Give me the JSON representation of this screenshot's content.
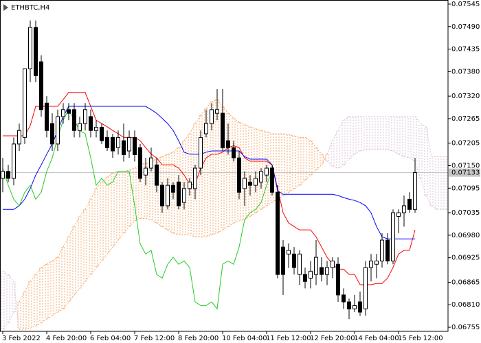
{
  "chart_data": {
    "type": "candlestick",
    "title": "ETHBTC,H4",
    "categories": [
      "3 Feb 2022",
      null,
      null,
      null,
      null,
      null,
      null,
      null,
      "4 Feb 20:00",
      null,
      null,
      null,
      null,
      null,
      null,
      null,
      "6 Feb 04:00",
      null,
      null,
      null,
      null,
      null,
      null,
      null,
      "7 Feb 12:00",
      null,
      null,
      null,
      null,
      null,
      null,
      null,
      "8 Feb 20:00",
      null,
      null,
      null,
      null,
      null,
      null,
      null,
      "10 Feb 04:00",
      null,
      null,
      null,
      null,
      null,
      null,
      null,
      "11 Feb 12:00",
      null,
      null,
      null,
      null,
      null,
      null,
      null,
      "12 Feb 20:00",
      null,
      null,
      null,
      null,
      null,
      null,
      null,
      "14 Feb 04:00",
      null,
      null,
      null,
      null,
      null,
      null,
      null,
      "15 Feb 12:00",
      null,
      null,
      null,
      null,
      null,
      null,
      null,
      null,
      null
    ],
    "open": [
      0.07119,
      0.07136,
      0.07119,
      0.07203,
      0.07219,
      0.07387,
      0.07488,
      0.07404,
      0.07303,
      0.07253,
      0.07203,
      0.0727,
      0.07287,
      0.07287,
      0.07236,
      0.07253,
      0.0727,
      0.07236,
      0.07244,
      0.07219,
      0.07219,
      0.07194,
      0.07211,
      0.07186,
      0.07219,
      0.07194,
      0.07127,
      0.07144,
      0.07152,
      0.07102,
      0.07052,
      0.07102,
      0.0711,
      0.0706,
      0.07094,
      0.07094,
      0.07144,
      0.07228,
      0.07253,
      0.07278,
      0.07278,
      0.07211,
      0.07194,
      0.07169,
      0.07094,
      0.0711,
      0.07102,
      0.0711,
      0.07127,
      0.07144,
      0.07085,
      0.06951,
      0.06934,
      0.06934,
      0.06884,
      0.06884,
      0.06875,
      0.06884,
      0.06901,
      0.06884,
      0.06901,
      0.06909,
      0.06834,
      0.06817,
      0.068,
      0.06817,
      0.068,
      0.06901,
      0.06909,
      0.06917,
      0.06968,
      0.06917,
      0.07026,
      0.07035,
      0.07068,
      0.07043,
      null,
      null,
      null,
      null,
      null,
      null
    ],
    "high": [
      0.07169,
      0.07152,
      0.07219,
      0.07253,
      0.07387,
      0.07505,
      0.07505,
      0.0742,
      0.0732,
      0.07278,
      0.07287,
      0.07303,
      0.07303,
      0.07303,
      0.0727,
      0.07303,
      0.07287,
      0.07261,
      0.07253,
      0.07236,
      0.07228,
      0.07236,
      0.07253,
      0.07236,
      0.07236,
      0.07203,
      0.07169,
      0.07194,
      0.07169,
      0.0711,
      0.07119,
      0.0711,
      0.07127,
      0.0711,
      0.07119,
      0.07152,
      0.07236,
      0.07287,
      0.07303,
      0.07337,
      0.07337,
      0.07253,
      0.07211,
      0.07186,
      0.07136,
      0.07127,
      0.07136,
      0.07144,
      0.07152,
      0.07152,
      0.07102,
      0.06968,
      0.0696,
      0.06951,
      0.06943,
      0.06901,
      0.06917,
      0.06968,
      0.06926,
      0.06917,
      0.06926,
      0.06926,
      0.0685,
      0.06825,
      0.06834,
      0.06842,
      0.06917,
      0.06934,
      0.06934,
      0.06985,
      0.06985,
      0.07043,
      0.07043,
      0.07077,
      0.07085,
      0.07169,
      null,
      null,
      null,
      null,
      null,
      null
    ],
    "low": [
      0.07085,
      0.0711,
      0.07102,
      0.07186,
      0.07203,
      0.07354,
      0.07354,
      0.0727,
      0.07219,
      0.07186,
      0.07186,
      0.07253,
      0.07261,
      0.07219,
      0.07219,
      0.07236,
      0.07219,
      0.07219,
      0.07203,
      0.07186,
      0.07169,
      0.07177,
      0.0716,
      0.07169,
      0.0716,
      0.0711,
      0.07102,
      0.07136,
      0.07085,
      0.07035,
      0.07043,
      0.07068,
      0.07043,
      0.07043,
      0.07077,
      0.07068,
      0.07127,
      0.07219,
      0.07236,
      0.07261,
      0.07186,
      0.07177,
      0.0716,
      0.07068,
      0.07052,
      0.07077,
      0.07085,
      0.07094,
      0.0711,
      0.07077,
      0.06875,
      0.06834,
      0.069,
      0.06884,
      0.06858,
      0.0685,
      0.0685,
      0.06858,
      0.06867,
      0.06858,
      0.06875,
      0.06817,
      0.068,
      0.06775,
      0.06792,
      0.06783,
      0.06783,
      0.06867,
      0.06875,
      0.06901,
      0.06909,
      0.06909,
      0.06985,
      0.07001,
      0.07035,
      0.07035,
      null,
      null,
      null,
      null,
      null,
      null
    ],
    "close": [
      0.07136,
      0.07119,
      0.07203,
      0.07236,
      0.07387,
      0.07488,
      0.0737,
      0.07287,
      0.07236,
      0.07203,
      0.0727,
      0.07287,
      0.07278,
      0.07236,
      0.07253,
      0.07287,
      0.07236,
      0.07244,
      0.07211,
      0.07194,
      0.07186,
      0.07219,
      0.07177,
      0.07219,
      0.07177,
      0.07119,
      0.07144,
      0.07169,
      0.07102,
      0.07052,
      0.07102,
      0.07085,
      0.07052,
      0.07094,
      0.0711,
      0.07144,
      0.07219,
      0.07253,
      0.07287,
      0.07287,
      0.07194,
      0.07194,
      0.07169,
      0.07085,
      0.07119,
      0.07102,
      0.07119,
      0.07136,
      0.07144,
      0.07085,
      0.06884,
      0.06884,
      0.06943,
      0.06901,
      0.06934,
      0.06867,
      0.06892,
      0.06926,
      0.06884,
      0.06901,
      0.06917,
      0.06834,
      0.06817,
      0.068,
      0.06808,
      0.06792,
      0.06901,
      0.06917,
      0.06917,
      0.06968,
      0.06917,
      0.07035,
      0.07035,
      0.07052,
      0.07043,
      0.07133,
      null,
      null,
      null,
      null,
      null,
      null
    ],
    "up_color": "#ffffff",
    "down_color": "#000000",
    "series": [
      {
        "color": "#ff0000",
        "values": [
          0.07223,
          0.07223,
          0.07223,
          0.07223,
          0.07223,
          0.07248,
          0.07295,
          0.07295,
          0.07295,
          0.07295,
          0.07295,
          0.07312,
          0.07329,
          0.07329,
          0.07329,
          0.07329,
          0.07295,
          0.07261,
          0.07253,
          0.07245,
          0.07236,
          0.07228,
          0.07219,
          0.07219,
          0.07219,
          0.07211,
          0.07194,
          0.07178,
          0.07169,
          0.07152,
          0.07152,
          0.07152,
          0.07144,
          0.07127,
          0.07105,
          0.07105,
          0.07144,
          0.07169,
          0.07178,
          0.07178,
          0.07183,
          0.07194,
          0.07199,
          0.07194,
          0.07169,
          0.07161,
          0.07161,
          0.07161,
          0.07161,
          0.07152,
          0.07094,
          0.07035,
          0.0701,
          0.07001,
          0.06993,
          0.06993,
          0.06993,
          0.06976,
          0.06951,
          0.06926,
          0.06909,
          0.06897,
          0.06897,
          0.06884,
          0.06884,
          0.06859,
          0.06859,
          0.06859,
          0.06862,
          0.06862,
          0.06875,
          0.06901,
          0.06934,
          0.06943,
          0.06943,
          0.06993,
          null,
          null,
          null,
          null,
          null,
          null
        ]
      },
      {
        "color": "#0000ff",
        "values": [
          0.07043,
          0.07043,
          0.07043,
          0.07052,
          0.07068,
          0.07094,
          0.07127,
          0.07152,
          0.07178,
          0.07203,
          0.07236,
          0.0727,
          0.07295,
          0.07295,
          0.07295,
          0.07295,
          0.07295,
          0.07295,
          0.07295,
          0.07295,
          0.07295,
          0.07295,
          0.07295,
          0.07295,
          0.07295,
          0.07295,
          0.07295,
          0.07287,
          0.07278,
          0.07266,
          0.07253,
          0.07236,
          0.07211,
          0.07183,
          0.07178,
          0.07178,
          0.07178,
          0.07183,
          0.07186,
          0.07186,
          0.07186,
          0.07186,
          0.07186,
          0.07186,
          0.07172,
          0.07166,
          0.07166,
          0.07166,
          0.07166,
          0.07152,
          0.07089,
          0.0708,
          0.0708,
          0.0708,
          0.0708,
          0.0708,
          0.0708,
          0.0708,
          0.0708,
          0.0708,
          0.0708,
          0.07077,
          0.07072,
          0.07068,
          0.07065,
          0.0706,
          0.07052,
          0.07035,
          0.07001,
          0.06976,
          0.06971,
          0.06971,
          0.06971,
          0.06971,
          0.06971,
          0.06971,
          null,
          null,
          null,
          null,
          null,
          null
        ]
      },
      {
        "color": "#22cc22",
        "values": [
          0.07144,
          0.07102,
          0.07068,
          0.07052,
          0.07085,
          0.07102,
          0.07068,
          0.07085,
          0.07136,
          0.07169,
          0.07219,
          0.07261,
          0.07287,
          0.07261,
          0.07236,
          0.07228,
          0.07169,
          0.07102,
          0.07119,
          0.07102,
          0.0711,
          0.07136,
          0.07136,
          0.07136,
          0.07052,
          0.06959,
          0.06934,
          0.06943,
          0.06884,
          0.06875,
          0.06909,
          0.06926,
          0.06909,
          0.06917,
          0.06901,
          0.06817,
          0.06808,
          0.06808,
          0.06817,
          0.068,
          0.06909,
          0.06917,
          0.06909,
          0.06951,
          0.07018,
          0.07035,
          0.07043,
          0.0706,
          0.07102,
          0.07136,
          null,
          null,
          null,
          null,
          null,
          null,
          null,
          null,
          null,
          null,
          null,
          null,
          null,
          null,
          null,
          null,
          null,
          null,
          null,
          null,
          null,
          null,
          null,
          null,
          null,
          null,
          null,
          null,
          null,
          null,
          null,
          null
        ]
      }
    ],
    "cloud": {
      "up_color": "#f4a460",
      "down_color": "#d8bfd8",
      "span_a": [
        0.0675,
        0.06766,
        0.06792,
        0.06817,
        0.06842,
        0.06867,
        0.06884,
        0.06901,
        0.06909,
        0.06917,
        0.06926,
        0.06951,
        0.06976,
        0.07001,
        0.07026,
        0.07043,
        0.07068,
        0.07094,
        0.0711,
        0.07122,
        0.07132,
        0.07136,
        0.07136,
        0.07139,
        0.07144,
        0.07152,
        0.07156,
        0.07161,
        0.07166,
        0.07172,
        0.07178,
        0.07183,
        0.07194,
        0.07211,
        0.07228,
        0.07253,
        0.07273,
        0.0729,
        0.07307,
        0.07312,
        0.07295,
        0.07278,
        0.07266,
        0.07256,
        0.0725,
        0.07245,
        0.0724,
        0.07236,
        0.07233,
        0.07228,
        0.07228,
        0.07228,
        0.07226,
        0.07223,
        0.07219,
        0.07219,
        0.07211,
        0.07194,
        0.07178,
        0.07161,
        0.07149,
        0.07144,
        0.07152,
        0.07166,
        0.07178,
        0.07186,
        0.07189,
        0.07189,
        0.07189,
        0.07189,
        0.07189,
        0.07186,
        0.07178,
        0.07172,
        0.07169,
        0.07161,
        0.07119,
        0.07077,
        0.07052,
        0.07043,
        0.07043,
        0.07043
      ],
      "span_b": [
        0.06892,
        0.06884,
        0.06867,
        0.0675,
        0.0675,
        0.06753,
        0.06758,
        0.06766,
        0.06775,
        0.06783,
        0.06792,
        0.068,
        0.06817,
        0.06834,
        0.0685,
        0.06867,
        0.06884,
        0.06901,
        0.06917,
        0.06934,
        0.06951,
        0.06968,
        0.06985,
        0.07001,
        0.07015,
        0.07021,
        0.07021,
        0.07018,
        0.0701,
        0.07001,
        0.06993,
        0.06985,
        0.06981,
        0.06981,
        0.06981,
        0.06976,
        0.06976,
        0.06976,
        0.06981,
        0.06985,
        0.06993,
        0.07001,
        0.0701,
        0.07015,
        0.07018,
        0.07026,
        0.07035,
        0.07043,
        0.07052,
        0.0706,
        0.07068,
        0.07077,
        0.07085,
        0.07094,
        0.07102,
        0.07115,
        0.07127,
        0.07139,
        0.07152,
        0.07178,
        0.07211,
        0.07236,
        0.07261,
        0.0727,
        0.0727,
        0.0727,
        0.0727,
        0.0727,
        0.0727,
        0.0727,
        0.0727,
        0.0727,
        0.0727,
        0.0727,
        0.0727,
        0.0727,
        0.07253,
        0.07245,
        0.07172,
        0.07172,
        0.07172,
        0.07172
      ]
    },
    "current_price": 0.07133,
    "ylim": [
      0.06745,
      0.07555
    ],
    "yticks": [
      0.07545,
      {
        "value": 0.0749,
        "label": "0.07490"
      },
      0.07435,
      {
        "value": 0.0738,
        "label": "0.07380"
      },
      {
        "value": 0.0732,
        "label": "0.07320"
      },
      0.07265,
      0.07205,
      {
        "value": 0.0715,
        "label": "0.07150"
      },
      0.07095,
      0.07035,
      {
        "value": 0.0698,
        "label": "0.06980"
      },
      0.06925,
      0.06865,
      {
        "value": 0.0681,
        "label": "0.06810"
      },
      0.06755
    ]
  }
}
